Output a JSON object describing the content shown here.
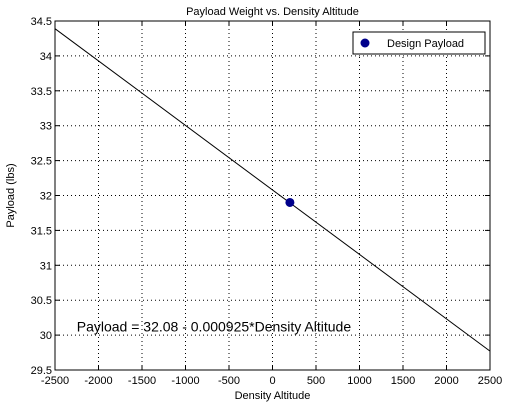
{
  "chart_data": {
    "type": "line",
    "title": "Payload Weight vs. Density Altitude",
    "xlabel": "Density Altitude",
    "ylabel": "Payload (lbs)",
    "xlim": [
      -2500,
      2500
    ],
    "ylim": [
      29.5,
      34.5
    ],
    "xticks": [
      -2500,
      -2000,
      -1500,
      -1000,
      -500,
      0,
      500,
      1000,
      1500,
      2000,
      2500
    ],
    "xtick_labels": [
      "-2500",
      "-2000",
      "-1500",
      "-1000",
      "-500",
      "0",
      "500",
      "1000",
      "1500",
      "2000",
      "2500"
    ],
    "yticks": [
      29.5,
      30,
      30.5,
      31,
      31.5,
      32,
      32.5,
      33,
      33.5,
      34,
      34.5
    ],
    "ytick_labels": [
      "29.5",
      "30",
      "30.5",
      "31",
      "31.5",
      "32",
      "32.5",
      "33",
      "33.5",
      "34",
      "34.5"
    ],
    "grid": true,
    "legend": {
      "position": "top-right",
      "entries": [
        "Design Payload"
      ]
    },
    "series": [
      {
        "kind": "line",
        "color": "#000000",
        "x": [
          -2500,
          2500
        ],
        "y": [
          34.39,
          29.77
        ]
      },
      {
        "kind": "marker",
        "name": "Design Payload",
        "color": "#00008b",
        "x": [
          200
        ],
        "y": [
          31.9
        ]
      }
    ],
    "annotation": {
      "text": "Payload = 32.08 - 0.000925*Density Altitude",
      "x": -2250,
      "y": 30.05
    }
  }
}
